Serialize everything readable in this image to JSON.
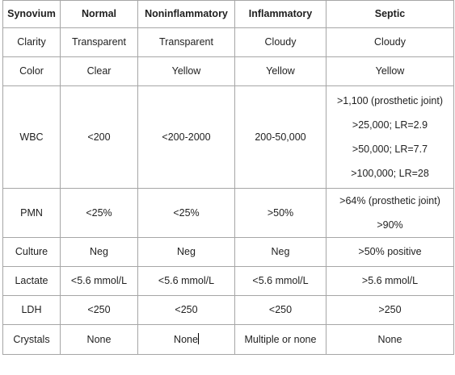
{
  "table": {
    "headers": [
      "Synovium",
      "Normal",
      "Noninflammatory",
      "Inflammatory",
      "Septic"
    ],
    "rows": [
      {
        "label": "Clarity",
        "normal": "Transparent",
        "noninflammatory": "Transparent",
        "inflammatory": "Cloudy",
        "septic": [
          "Cloudy"
        ]
      },
      {
        "label": "Color",
        "normal": "Clear",
        "noninflammatory": "Yellow",
        "inflammatory": "Yellow",
        "septic": [
          "Yellow"
        ]
      },
      {
        "label": "WBC",
        "normal": "<200",
        "noninflammatory": "<200-2000",
        "inflammatory": "200-50,000",
        "septic": [
          ">1,100 (prosthetic joint)",
          ">25,000; LR=2.9",
          ">50,000; LR=7.7",
          ">100,000; LR=28"
        ]
      },
      {
        "label": "PMN",
        "normal": "<25%",
        "noninflammatory": "<25%",
        "inflammatory": ">50%",
        "septic": [
          ">64% (prosthetic joint)",
          ">90%"
        ]
      },
      {
        "label": "Culture",
        "normal": "Neg",
        "noninflammatory": "Neg",
        "inflammatory": "Neg",
        "septic": [
          ">50% positive"
        ]
      },
      {
        "label": "Lactate",
        "normal": "<5.6 mmol/L",
        "noninflammatory": "<5.6 mmol/L",
        "inflammatory": "<5.6 mmol/L",
        "septic": [
          ">5.6 mmol/L"
        ]
      },
      {
        "label": "LDH",
        "normal": "<250",
        "noninflammatory": "<250",
        "inflammatory": "<250",
        "septic": [
          ">250"
        ]
      },
      {
        "label": "Crystals",
        "normal": "None",
        "noninflammatory": "None",
        "inflammatory": "Multiple or none",
        "septic": [
          "None"
        ]
      }
    ]
  }
}
